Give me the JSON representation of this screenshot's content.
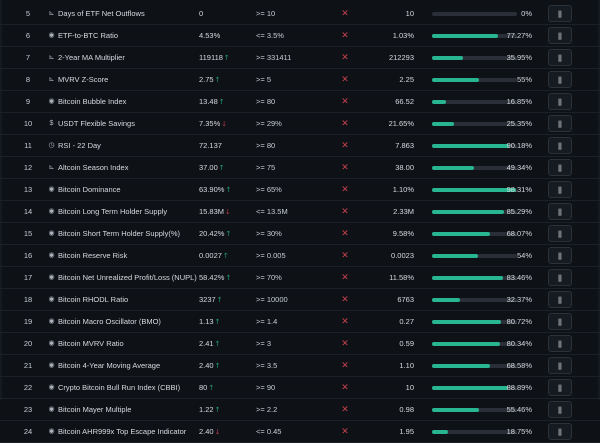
{
  "rows": [
    {
      "num": "5",
      "icon": "chart-icon",
      "icon_glyph": "⊾",
      "name": "Days of ETF Net Outflows",
      "current": "0",
      "arrow": "",
      "target": ">= 10",
      "hit": "✕",
      "previous": "10",
      "progress": 0,
      "percent": "0%"
    },
    {
      "num": "6",
      "icon": "bitcoin-icon",
      "icon_glyph": "◉",
      "name": "ETF-to-BTC Ratio",
      "current": "4.53%",
      "arrow": "",
      "target": "<= 3.5%",
      "hit": "✕",
      "previous": "1.03%",
      "progress": 77.27,
      "percent": "77.27%"
    },
    {
      "num": "7",
      "icon": "chart-icon",
      "icon_glyph": "⊾",
      "name": "2-Year MA Multiplier",
      "current": "119118",
      "arrow": "up",
      "target": ">= 331411",
      "hit": "✕",
      "previous": "212293",
      "progress": 35.95,
      "percent": "35.95%"
    },
    {
      "num": "8",
      "icon": "chart-icon",
      "icon_glyph": "⊾",
      "name": "MVRV Z-Score",
      "current": "2.75",
      "arrow": "up",
      "target": ">= 5",
      "hit": "✕",
      "previous": "2.25",
      "progress": 55,
      "percent": "55%"
    },
    {
      "num": "9",
      "icon": "bitcoin-icon",
      "icon_glyph": "◉",
      "name": "Bitcoin Bubble Index",
      "current": "13.48",
      "arrow": "up",
      "target": ">= 80",
      "hit": "✕",
      "previous": "66.52",
      "progress": 16.85,
      "percent": "16.85%"
    },
    {
      "num": "10",
      "icon": "dollar-icon",
      "icon_glyph": "$",
      "name": "USDT Flexible Savings",
      "current": "7.35%",
      "arrow": "down",
      "target": ">= 29%",
      "hit": "✕",
      "previous": "21.65%",
      "progress": 25.35,
      "percent": "25.35%"
    },
    {
      "num": "11",
      "icon": "clock-icon",
      "icon_glyph": "◷",
      "name": "RSI - 22 Day",
      "current": "72.137",
      "arrow": "",
      "target": ">= 80",
      "hit": "✕",
      "previous": "7.863",
      "progress": 90.18,
      "percent": "90.18%"
    },
    {
      "num": "12",
      "icon": "chart-icon",
      "icon_glyph": "⊾",
      "name": "Altcoin Season Index",
      "current": "37.00",
      "arrow": "up",
      "target": ">= 75",
      "hit": "✕",
      "previous": "38.00",
      "progress": 49.34,
      "percent": "49.34%"
    },
    {
      "num": "13",
      "icon": "bitcoin-icon",
      "icon_glyph": "◉",
      "name": "Bitcoin Dominance",
      "current": "63.90%",
      "arrow": "up",
      "target": ">= 65%",
      "hit": "✕",
      "previous": "1.10%",
      "progress": 98.31,
      "percent": "98.31%"
    },
    {
      "num": "14",
      "icon": "bitcoin-icon",
      "icon_glyph": "◉",
      "name": "Bitcoin Long Term Holder Supply",
      "current": "15.83M",
      "arrow": "down",
      "target": "<= 13.5M",
      "hit": "✕",
      "previous": "2.33M",
      "progress": 85.29,
      "percent": "85.29%"
    },
    {
      "num": "15",
      "icon": "bitcoin-icon",
      "icon_glyph": "◉",
      "name": "Bitcoin Short Term Holder Supply(%)",
      "current": "20.42%",
      "arrow": "up",
      "target": ">= 30%",
      "hit": "✕",
      "previous": "9.58%",
      "progress": 68.07,
      "percent": "68.07%"
    },
    {
      "num": "16",
      "icon": "bitcoin-icon",
      "icon_glyph": "◉",
      "name": "Bitcoin Reserve Risk",
      "current": "0.0027",
      "arrow": "up",
      "target": ">= 0.005",
      "hit": "✕",
      "previous": "0.0023",
      "progress": 54,
      "percent": "54%"
    },
    {
      "num": "17",
      "icon": "bitcoin-icon",
      "icon_glyph": "◉",
      "name": "Bitcoin Net Unrealized Profit/Loss (NUPL)",
      "current": "58.42%",
      "arrow": "up",
      "target": ">= 70%",
      "hit": "✕",
      "previous": "11.58%",
      "progress": 83.46,
      "percent": "83.46%"
    },
    {
      "num": "18",
      "icon": "bitcoin-icon",
      "icon_glyph": "◉",
      "name": "Bitcoin RHODL Ratio",
      "current": "3237",
      "arrow": "up",
      "target": ">= 10000",
      "hit": "✕",
      "previous": "6763",
      "progress": 32.37,
      "percent": "32.37%"
    },
    {
      "num": "19",
      "icon": "bitcoin-icon",
      "icon_glyph": "◉",
      "name": "Bitcoin Macro Oscillator (BMO)",
      "current": "1.13",
      "arrow": "up",
      "target": ">= 1.4",
      "hit": "✕",
      "previous": "0.27",
      "progress": 80.72,
      "percent": "80.72%"
    },
    {
      "num": "20",
      "icon": "bitcoin-icon",
      "icon_glyph": "◉",
      "name": "Bitcoin MVRV Ratio",
      "current": "2.41",
      "arrow": "up",
      "target": ">= 3",
      "hit": "✕",
      "previous": "0.59",
      "progress": 80.34,
      "percent": "80.34%"
    },
    {
      "num": "21",
      "icon": "bitcoin-icon",
      "icon_glyph": "◉",
      "name": "Bitcoin 4-Year Moving Average",
      "current": "2.40",
      "arrow": "up",
      "target": ">= 3.5",
      "hit": "✕",
      "previous": "1.10",
      "progress": 68.58,
      "percent": "68.58%"
    },
    {
      "num": "22",
      "icon": "bitcoin-icon",
      "icon_glyph": "◉",
      "name": "Crypto Bitcoin Bull Run Index (CBBI)",
      "current": "80",
      "arrow": "up",
      "target": ">= 90",
      "hit": "✕",
      "previous": "10",
      "progress": 88.89,
      "percent": "88.89%"
    },
    {
      "num": "23",
      "icon": "bitcoin-icon",
      "icon_glyph": "◉",
      "name": "Bitcoin Mayer Multiple",
      "current": "1.22",
      "arrow": "up",
      "target": ">= 2.2",
      "hit": "✕",
      "previous": "0.98",
      "progress": 55.46,
      "percent": "55.46%"
    },
    {
      "num": "24",
      "icon": "bitcoin-icon",
      "icon_glyph": "◉",
      "name": "Bitcoin AHR999x Top Escape Indicator",
      "current": "2.40",
      "arrow": "down",
      "target": "<= 0.45",
      "hit": "✕",
      "previous": "1.95",
      "progress": 18.75,
      "percent": "18.75%"
    }
  ],
  "arrow_glyphs": {
    "up": "🡑",
    "down": "🡓"
  },
  "chart_button_icon": "chart-button-icon",
  "chart_button_glyph": "⫼",
  "colors": {
    "bar": "#27b68f",
    "up": "#27d39a",
    "down": "#ef4b5b",
    "cross": "#c8434f",
    "background": "#0e1116"
  }
}
